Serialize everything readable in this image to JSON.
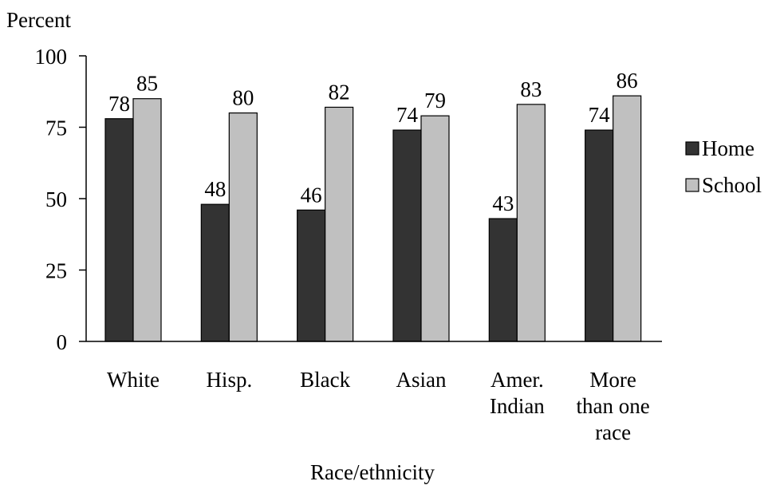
{
  "chart_data": {
    "type": "bar",
    "title": "",
    "ylabel": "Percent",
    "xlabel": "Race/ethnicity",
    "ylim": [
      0,
      100
    ],
    "yticks": [
      0,
      25,
      50,
      75,
      100
    ],
    "grid": false,
    "legend_position": "right",
    "categories": [
      [
        "White"
      ],
      [
        "Hisp."
      ],
      [
        "Black"
      ],
      [
        "Asian"
      ],
      [
        "Amer.",
        "Indian"
      ],
      [
        "More",
        "than one",
        "race"
      ]
    ],
    "series": [
      {
        "name": "Home",
        "color": "#333333",
        "values": [
          78,
          48,
          46,
          74,
          43,
          74
        ]
      },
      {
        "name": "School",
        "color": "#c0c0c0",
        "values": [
          85,
          80,
          82,
          79,
          83,
          86
        ]
      }
    ]
  }
}
